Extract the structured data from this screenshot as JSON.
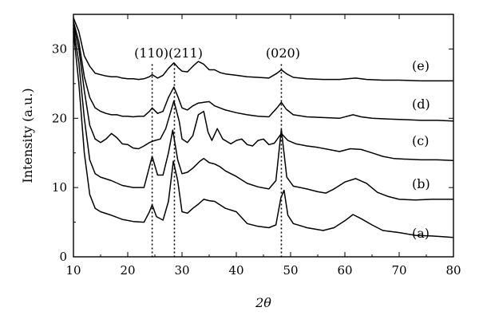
{
  "chart_data": {
    "type": "line",
    "xlabel": "2θ",
    "ylabel": "Intensity (a.u.)",
    "xlim": [
      10,
      80
    ],
    "ylim": [
      0,
      35
    ],
    "xticks": [
      10,
      20,
      30,
      40,
      50,
      60,
      70,
      80
    ],
    "yticks": [
      0,
      10,
      20,
      30
    ],
    "grid": false,
    "peak_lines": [
      {
        "label": "(110)",
        "x": 24.5
      },
      {
        "label": "(211)",
        "x": 28.6
      },
      {
        "label": "(020)",
        "x": 48.3
      }
    ],
    "series": [
      {
        "name": "(a)",
        "points": [
          [
            10,
            32.5
          ],
          [
            11,
            25
          ],
          [
            12,
            15
          ],
          [
            13,
            9
          ],
          [
            14,
            7
          ],
          [
            15,
            6.5
          ],
          [
            17,
            6
          ],
          [
            19,
            5.4
          ],
          [
            21,
            5.1
          ],
          [
            23,
            5
          ],
          [
            24,
            6.5
          ],
          [
            24.5,
            7.5
          ],
          [
            25.3,
            5.8
          ],
          [
            26.5,
            5.3
          ],
          [
            27.5,
            8
          ],
          [
            28.4,
            13.8
          ],
          [
            29.2,
            11
          ],
          [
            30,
            6.5
          ],
          [
            31,
            6.3
          ],
          [
            32,
            7
          ],
          [
            33,
            7.6
          ],
          [
            34,
            8.3
          ],
          [
            35,
            8.1
          ],
          [
            36,
            8
          ],
          [
            38,
            7
          ],
          [
            40,
            6.5
          ],
          [
            42,
            4.8
          ],
          [
            44,
            4.4
          ],
          [
            46,
            4.2
          ],
          [
            47.3,
            4.6
          ],
          [
            48.2,
            8.5
          ],
          [
            48.8,
            9.6
          ],
          [
            49.5,
            6
          ],
          [
            50.5,
            4.8
          ],
          [
            53,
            4.2
          ],
          [
            56,
            3.8
          ],
          [
            58,
            4.2
          ],
          [
            60,
            5.2
          ],
          [
            61.5,
            6.1
          ],
          [
            63,
            5.5
          ],
          [
            65,
            4.6
          ],
          [
            67,
            3.8
          ],
          [
            70,
            3.5
          ],
          [
            73,
            3.1
          ],
          [
            76,
            3
          ],
          [
            78,
            2.9
          ],
          [
            80,
            2.8
          ]
        ]
      },
      {
        "name": "(b)",
        "points": [
          [
            10,
            33
          ],
          [
            11,
            28
          ],
          [
            12,
            20
          ],
          [
            13,
            14
          ],
          [
            14,
            12
          ],
          [
            15,
            11.5
          ],
          [
            17,
            11
          ],
          [
            19,
            10.3
          ],
          [
            21,
            10
          ],
          [
            23,
            10
          ],
          [
            24,
            13
          ],
          [
            24.5,
            14.5
          ],
          [
            25.5,
            11.8
          ],
          [
            26.5,
            11.8
          ],
          [
            27.5,
            15
          ],
          [
            28.3,
            18.3
          ],
          [
            29.2,
            14
          ],
          [
            30,
            12
          ],
          [
            31,
            12.2
          ],
          [
            32,
            12.8
          ],
          [
            33.3,
            13.8
          ],
          [
            34,
            14.2
          ],
          [
            35,
            13.6
          ],
          [
            36,
            13.4
          ],
          [
            37,
            13
          ],
          [
            38,
            12.4
          ],
          [
            40,
            11.6
          ],
          [
            42,
            10.6
          ],
          [
            44,
            10.1
          ],
          [
            46,
            9.8
          ],
          [
            47.3,
            11
          ],
          [
            48.3,
            18.4
          ],
          [
            49.3,
            11.5
          ],
          [
            50.5,
            10.2
          ],
          [
            53,
            9.8
          ],
          [
            55,
            9.4
          ],
          [
            56.5,
            9.2
          ],
          [
            58,
            9.8
          ],
          [
            60,
            10.8
          ],
          [
            62,
            11.3
          ],
          [
            64,
            10.6
          ],
          [
            66,
            9.3
          ],
          [
            68,
            8.7
          ],
          [
            70,
            8.3
          ],
          [
            73,
            8.2
          ],
          [
            76,
            8.3
          ],
          [
            80,
            8.3
          ]
        ]
      },
      {
        "name": "(c)",
        "points": [
          [
            10,
            33.5
          ],
          [
            11,
            30
          ],
          [
            12,
            24
          ],
          [
            13,
            19
          ],
          [
            14,
            17
          ],
          [
            15,
            16.5
          ],
          [
            16,
            17
          ],
          [
            17,
            17.8
          ],
          [
            18,
            17.2
          ],
          [
            19,
            16.3
          ],
          [
            20,
            16.2
          ],
          [
            21,
            15.7
          ],
          [
            22,
            15.6
          ],
          [
            23,
            16
          ],
          [
            24,
            16.5
          ],
          [
            25,
            16.8
          ],
          [
            26,
            17
          ],
          [
            27,
            18.5
          ],
          [
            28.5,
            22.5
          ],
          [
            29.5,
            19.5
          ],
          [
            30,
            17
          ],
          [
            31,
            16.5
          ],
          [
            32,
            17.5
          ],
          [
            33,
            20.5
          ],
          [
            34,
            21
          ],
          [
            34.8,
            18
          ],
          [
            35.5,
            16.8
          ],
          [
            36.5,
            18.5
          ],
          [
            37.5,
            17
          ],
          [
            39,
            16.3
          ],
          [
            40,
            16.8
          ],
          [
            41,
            17
          ],
          [
            42,
            16.2
          ],
          [
            43,
            16
          ],
          [
            44,
            16.8
          ],
          [
            45,
            17
          ],
          [
            46,
            16.2
          ],
          [
            47,
            16.4
          ],
          [
            48.3,
            17.8
          ],
          [
            49.5,
            16.8
          ],
          [
            51,
            16.3
          ],
          [
            53,
            16
          ],
          [
            55,
            15.8
          ],
          [
            57,
            15.5
          ],
          [
            59,
            15.2
          ],
          [
            61,
            15.6
          ],
          [
            63,
            15.5
          ],
          [
            65,
            15
          ],
          [
            67,
            14.5
          ],
          [
            69,
            14.2
          ],
          [
            71,
            14.1
          ],
          [
            74,
            14
          ],
          [
            77,
            14
          ],
          [
            80,
            13.9
          ]
        ]
      },
      {
        "name": "(d)",
        "points": [
          [
            10,
            34
          ],
          [
            11,
            31
          ],
          [
            12,
            26
          ],
          [
            13,
            23
          ],
          [
            14,
            21.5
          ],
          [
            15,
            21
          ],
          [
            16,
            20.7
          ],
          [
            17,
            20.5
          ],
          [
            18,
            20.5
          ],
          [
            19,
            20.3
          ],
          [
            20,
            20.3
          ],
          [
            21,
            20.2
          ],
          [
            22,
            20.3
          ],
          [
            23,
            20.3
          ],
          [
            24,
            21
          ],
          [
            24.5,
            21.5
          ],
          [
            25.5,
            20.7
          ],
          [
            26.5,
            21
          ],
          [
            27.5,
            23
          ],
          [
            28.5,
            24.5
          ],
          [
            29.3,
            23
          ],
          [
            30,
            21.5
          ],
          [
            31,
            21.2
          ],
          [
            32,
            21.8
          ],
          [
            33,
            22.2
          ],
          [
            34,
            22.3
          ],
          [
            35,
            22.4
          ],
          [
            36,
            21.8
          ],
          [
            37,
            21.5
          ],
          [
            38,
            21.2
          ],
          [
            40,
            20.8
          ],
          [
            42,
            20.5
          ],
          [
            44,
            20.3
          ],
          [
            46,
            20.2
          ],
          [
            47.5,
            21.5
          ],
          [
            48.3,
            22.3
          ],
          [
            49.2,
            21.3
          ],
          [
            50.5,
            20.5
          ],
          [
            53,
            20.2
          ],
          [
            56,
            20.1
          ],
          [
            59,
            20
          ],
          [
            61.5,
            20.5
          ],
          [
            63,
            20.2
          ],
          [
            65,
            20
          ],
          [
            68,
            19.9
          ],
          [
            71,
            19.8
          ],
          [
            74,
            19.7
          ],
          [
            77,
            19.7
          ],
          [
            80,
            19.6
          ]
        ]
      },
      {
        "name": "(e)",
        "points": [
          [
            10,
            34.5
          ],
          [
            11,
            32.5
          ],
          [
            12,
            29
          ],
          [
            13,
            27.5
          ],
          [
            14,
            26.5
          ],
          [
            15,
            26.3
          ],
          [
            16,
            26.1
          ],
          [
            17,
            26
          ],
          [
            18,
            26
          ],
          [
            19,
            25.8
          ],
          [
            20,
            25.7
          ],
          [
            21,
            25.7
          ],
          [
            22,
            25.6
          ],
          [
            23,
            25.7
          ],
          [
            24,
            26
          ],
          [
            24.5,
            26.3
          ],
          [
            25.5,
            25.8
          ],
          [
            26.5,
            26.2
          ],
          [
            27.5,
            27.2
          ],
          [
            28.5,
            28
          ],
          [
            29.3,
            27.3
          ],
          [
            30,
            26.8
          ],
          [
            31,
            26.7
          ],
          [
            32,
            27.5
          ],
          [
            33,
            28.2
          ],
          [
            34,
            27.8
          ],
          [
            35,
            27
          ],
          [
            36,
            27
          ],
          [
            37,
            26.6
          ],
          [
            38,
            26.4
          ],
          [
            40,
            26.2
          ],
          [
            42,
            26
          ],
          [
            44,
            25.9
          ],
          [
            46,
            25.8
          ],
          [
            47.5,
            26.5
          ],
          [
            48.3,
            27
          ],
          [
            49.3,
            26.4
          ],
          [
            50.5,
            25.9
          ],
          [
            53,
            25.7
          ],
          [
            56,
            25.6
          ],
          [
            59,
            25.6
          ],
          [
            62,
            25.8
          ],
          [
            64,
            25.6
          ],
          [
            67,
            25.5
          ],
          [
            70,
            25.5
          ],
          [
            74,
            25.4
          ],
          [
            77,
            25.4
          ],
          [
            80,
            25.4
          ]
        ]
      }
    ]
  }
}
